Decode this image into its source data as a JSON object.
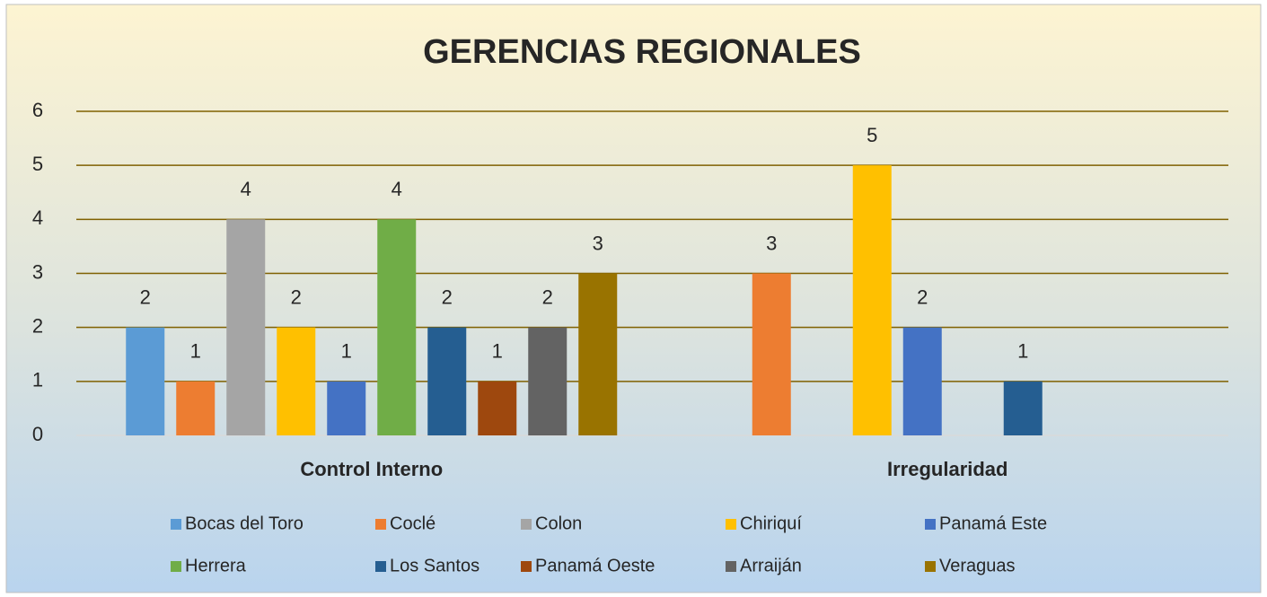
{
  "chart_data": {
    "type": "bar",
    "title": "GERENCIAS REGIONALES",
    "categories": [
      "Control Interno",
      "Irregularidad"
    ],
    "series": [
      {
        "name": "Bocas del Toro",
        "color": "#5b9bd5",
        "values": [
          2,
          null
        ]
      },
      {
        "name": "Coclé",
        "color": "#ed7d31",
        "values": [
          1,
          3
        ]
      },
      {
        "name": "Colon",
        "color": "#a5a5a5",
        "values": [
          4,
          null
        ]
      },
      {
        "name": "Chiriquí",
        "color": "#ffc000",
        "values": [
          2,
          5
        ]
      },
      {
        "name": "Panamá Este",
        "color": "#4472c4",
        "values": [
          1,
          2
        ]
      },
      {
        "name": "Herrera",
        "color": "#70ad47",
        "values": [
          4,
          null
        ]
      },
      {
        "name": "Los Santos",
        "color": "#255e91",
        "values": [
          2,
          1
        ]
      },
      {
        "name": "Panamá Oeste",
        "color": "#9e480e",
        "values": [
          1,
          null
        ]
      },
      {
        "name": "Arraiján",
        "color": "#636363",
        "values": [
          2,
          null
        ]
      },
      {
        "name": "Veraguas",
        "color": "#997300",
        "values": [
          3,
          null
        ]
      }
    ],
    "ylim": [
      0,
      6
    ],
    "yticks": [
      0,
      1,
      2,
      3,
      4,
      5,
      6
    ],
    "grid": true,
    "legend": "bottom"
  }
}
